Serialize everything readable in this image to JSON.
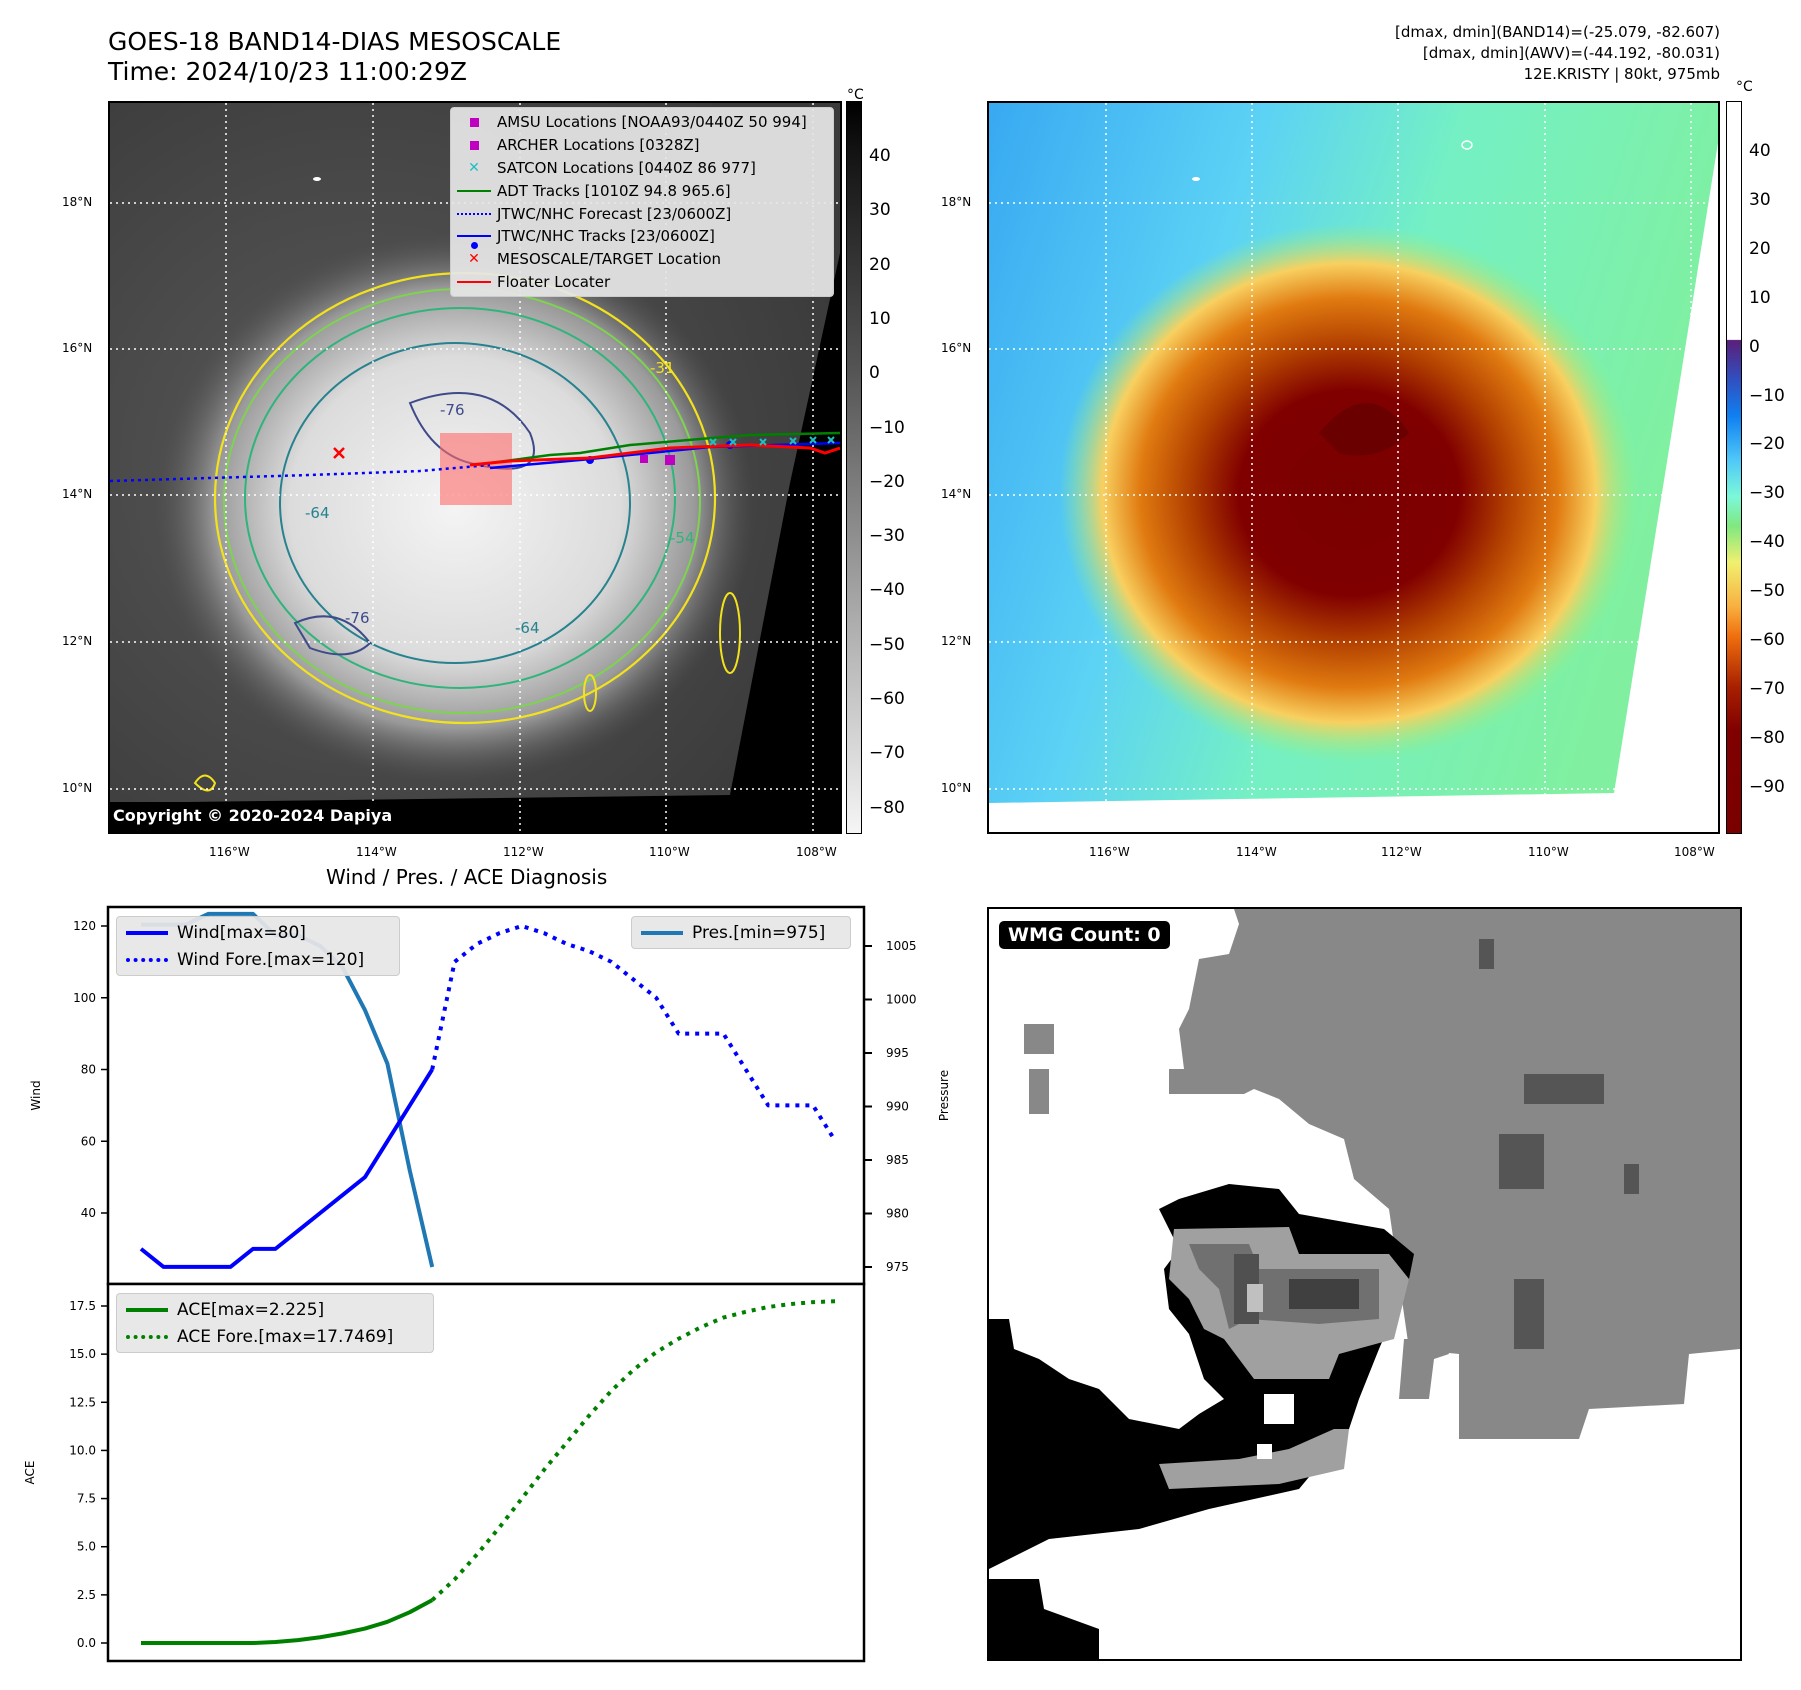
{
  "header": {
    "title_line1": "GOES-18 BAND14-DIAS MESOSCALE",
    "title_line2": "Time: 2024/10/23 11:00:29Z",
    "info_line1": "[dmax, dmin](BAND14)=(-25.079, -82.607)",
    "info_line2": "[dmax, dmin](AWV)=(-44.192, -80.031)",
    "info_line3": "12E.KRISTY | 80kt, 975mb"
  },
  "maps": {
    "lat_labels": [
      "18°N",
      "16°N",
      "14°N",
      "12°N",
      "10°N"
    ],
    "lon_labels": [
      "116°W",
      "114°W",
      "112°W",
      "110°W",
      "108°W"
    ],
    "copyright": "Copyright © 2020-2024 Dapiya",
    "contour_labels": [
      "-76",
      "-76",
      "-64",
      "-64",
      "-54",
      "-31"
    ],
    "legend": [
      {
        "label": "AMSU Locations [NOAA93/0440Z 50 994]",
        "symbol": "square",
        "color": "#c000c0"
      },
      {
        "label": "ARCHER Locations [0328Z]",
        "symbol": "square",
        "color": "#c000c0"
      },
      {
        "label": "SATCON Locations [0440Z 86 977]",
        "symbol": "x",
        "color": "#20c0c0"
      },
      {
        "label": "ADT Tracks [1010Z 94.8 965.6]",
        "symbol": "line",
        "color": "#008000"
      },
      {
        "label": "JTWC/NHC Forecast [23/0600Z]",
        "symbol": "dotted",
        "color": "#0000ff"
      },
      {
        "label": "JTWC/NHC Tracks [23/0600Z]",
        "symbol": "line-dot",
        "color": "#0000ff"
      },
      {
        "label": "MESOSCALE/TARGET Location",
        "symbol": "x",
        "color": "#ff0000"
      },
      {
        "label": "Floater Locater",
        "symbol": "line",
        "color": "#ff0000"
      }
    ],
    "colorbar_unit": "°C",
    "colorbar_gray_ticks": [
      "40",
      "30",
      "20",
      "10",
      "0",
      "−10",
      "−20",
      "−30",
      "−40",
      "−50",
      "−60",
      "−70",
      "−80"
    ],
    "colorbar_color_ticks": [
      "40",
      "30",
      "20",
      "10",
      "0",
      "−10",
      "−20",
      "−30",
      "−40",
      "−50",
      "−60",
      "−70",
      "−80",
      "−90"
    ]
  },
  "wmg": {
    "badge": "WMG Count: 0"
  },
  "chart_data": [
    {
      "type": "line",
      "title": "Wind / Pres. / ACE Diagnosis",
      "ylabel": "Wind",
      "y2label": "Pressure",
      "ylim": [
        22,
        125
      ],
      "y2lim": [
        973.5,
        1008.5
      ],
      "yticks": [
        "120",
        "100",
        "80",
        "60",
        "40"
      ],
      "y2ticks": [
        "1005",
        "1000",
        "995",
        "990",
        "985",
        "980",
        "975"
      ],
      "series": [
        {
          "name": "Wind[max=80]",
          "axis": "left",
          "style": "solid",
          "color": "#0000ff",
          "x": [
            0,
            1,
            2,
            3,
            4,
            5,
            6,
            7,
            8,
            9,
            10,
            11,
            12,
            13
          ],
          "values": [
            30,
            25,
            25,
            25,
            25,
            30,
            30,
            35,
            40,
            45,
            50,
            60,
            70,
            80
          ]
        },
        {
          "name": "Wind Fore.[max=120]",
          "axis": "left",
          "style": "dotted",
          "color": "#0000ff",
          "x": [
            13,
            14,
            15,
            16,
            17,
            18,
            19,
            20,
            21,
            22,
            23,
            24,
            25,
            26,
            27,
            28,
            29,
            30,
            31
          ],
          "values": [
            80,
            110,
            115,
            118,
            120,
            118,
            115,
            113,
            110,
            105,
            100,
            90,
            90,
            90,
            80,
            70,
            70,
            70,
            60
          ]
        },
        {
          "name": "Pres.[min=975]",
          "axis": "right",
          "style": "solid",
          "color": "#1f77b4",
          "x": [
            0,
            1,
            2,
            3,
            4,
            5,
            6,
            7,
            8,
            9,
            10,
            11,
            12,
            13
          ],
          "values": [
            1007,
            1007,
            1007,
            1008,
            1008,
            1008,
            1006,
            1006,
            1005,
            1003,
            999,
            994,
            984,
            975
          ]
        }
      ]
    },
    {
      "type": "line",
      "ylabel": "ACE",
      "ylim": [
        -0.8,
        18.5
      ],
      "yticks": [
        "17.5",
        "15.0",
        "12.5",
        "10.0",
        "7.5",
        "5.0",
        "2.5",
        "0.0"
      ],
      "series": [
        {
          "name": "ACE[max=2.225]",
          "style": "solid",
          "color": "#008000",
          "x": [
            0,
            1,
            2,
            3,
            4,
            5,
            6,
            7,
            8,
            9,
            10,
            11,
            12,
            13
          ],
          "values": [
            0,
            0,
            0,
            0,
            0,
            0,
            0.05,
            0.15,
            0.3,
            0.5,
            0.75,
            1.1,
            1.6,
            2.225
          ]
        },
        {
          "name": "ACE Fore.[max=17.7469]",
          "style": "dotted",
          "color": "#008000",
          "x": [
            13,
            14,
            15,
            16,
            17,
            18,
            19,
            20,
            21,
            22,
            23,
            24,
            25,
            26,
            27,
            28,
            29,
            30,
            31
          ],
          "values": [
            2.225,
            3.3,
            4.6,
            6.0,
            7.5,
            9.0,
            10.4,
            11.8,
            13.1,
            14.2,
            15.1,
            15.8,
            16.4,
            16.9,
            17.2,
            17.45,
            17.6,
            17.7,
            17.7469
          ]
        }
      ]
    }
  ]
}
